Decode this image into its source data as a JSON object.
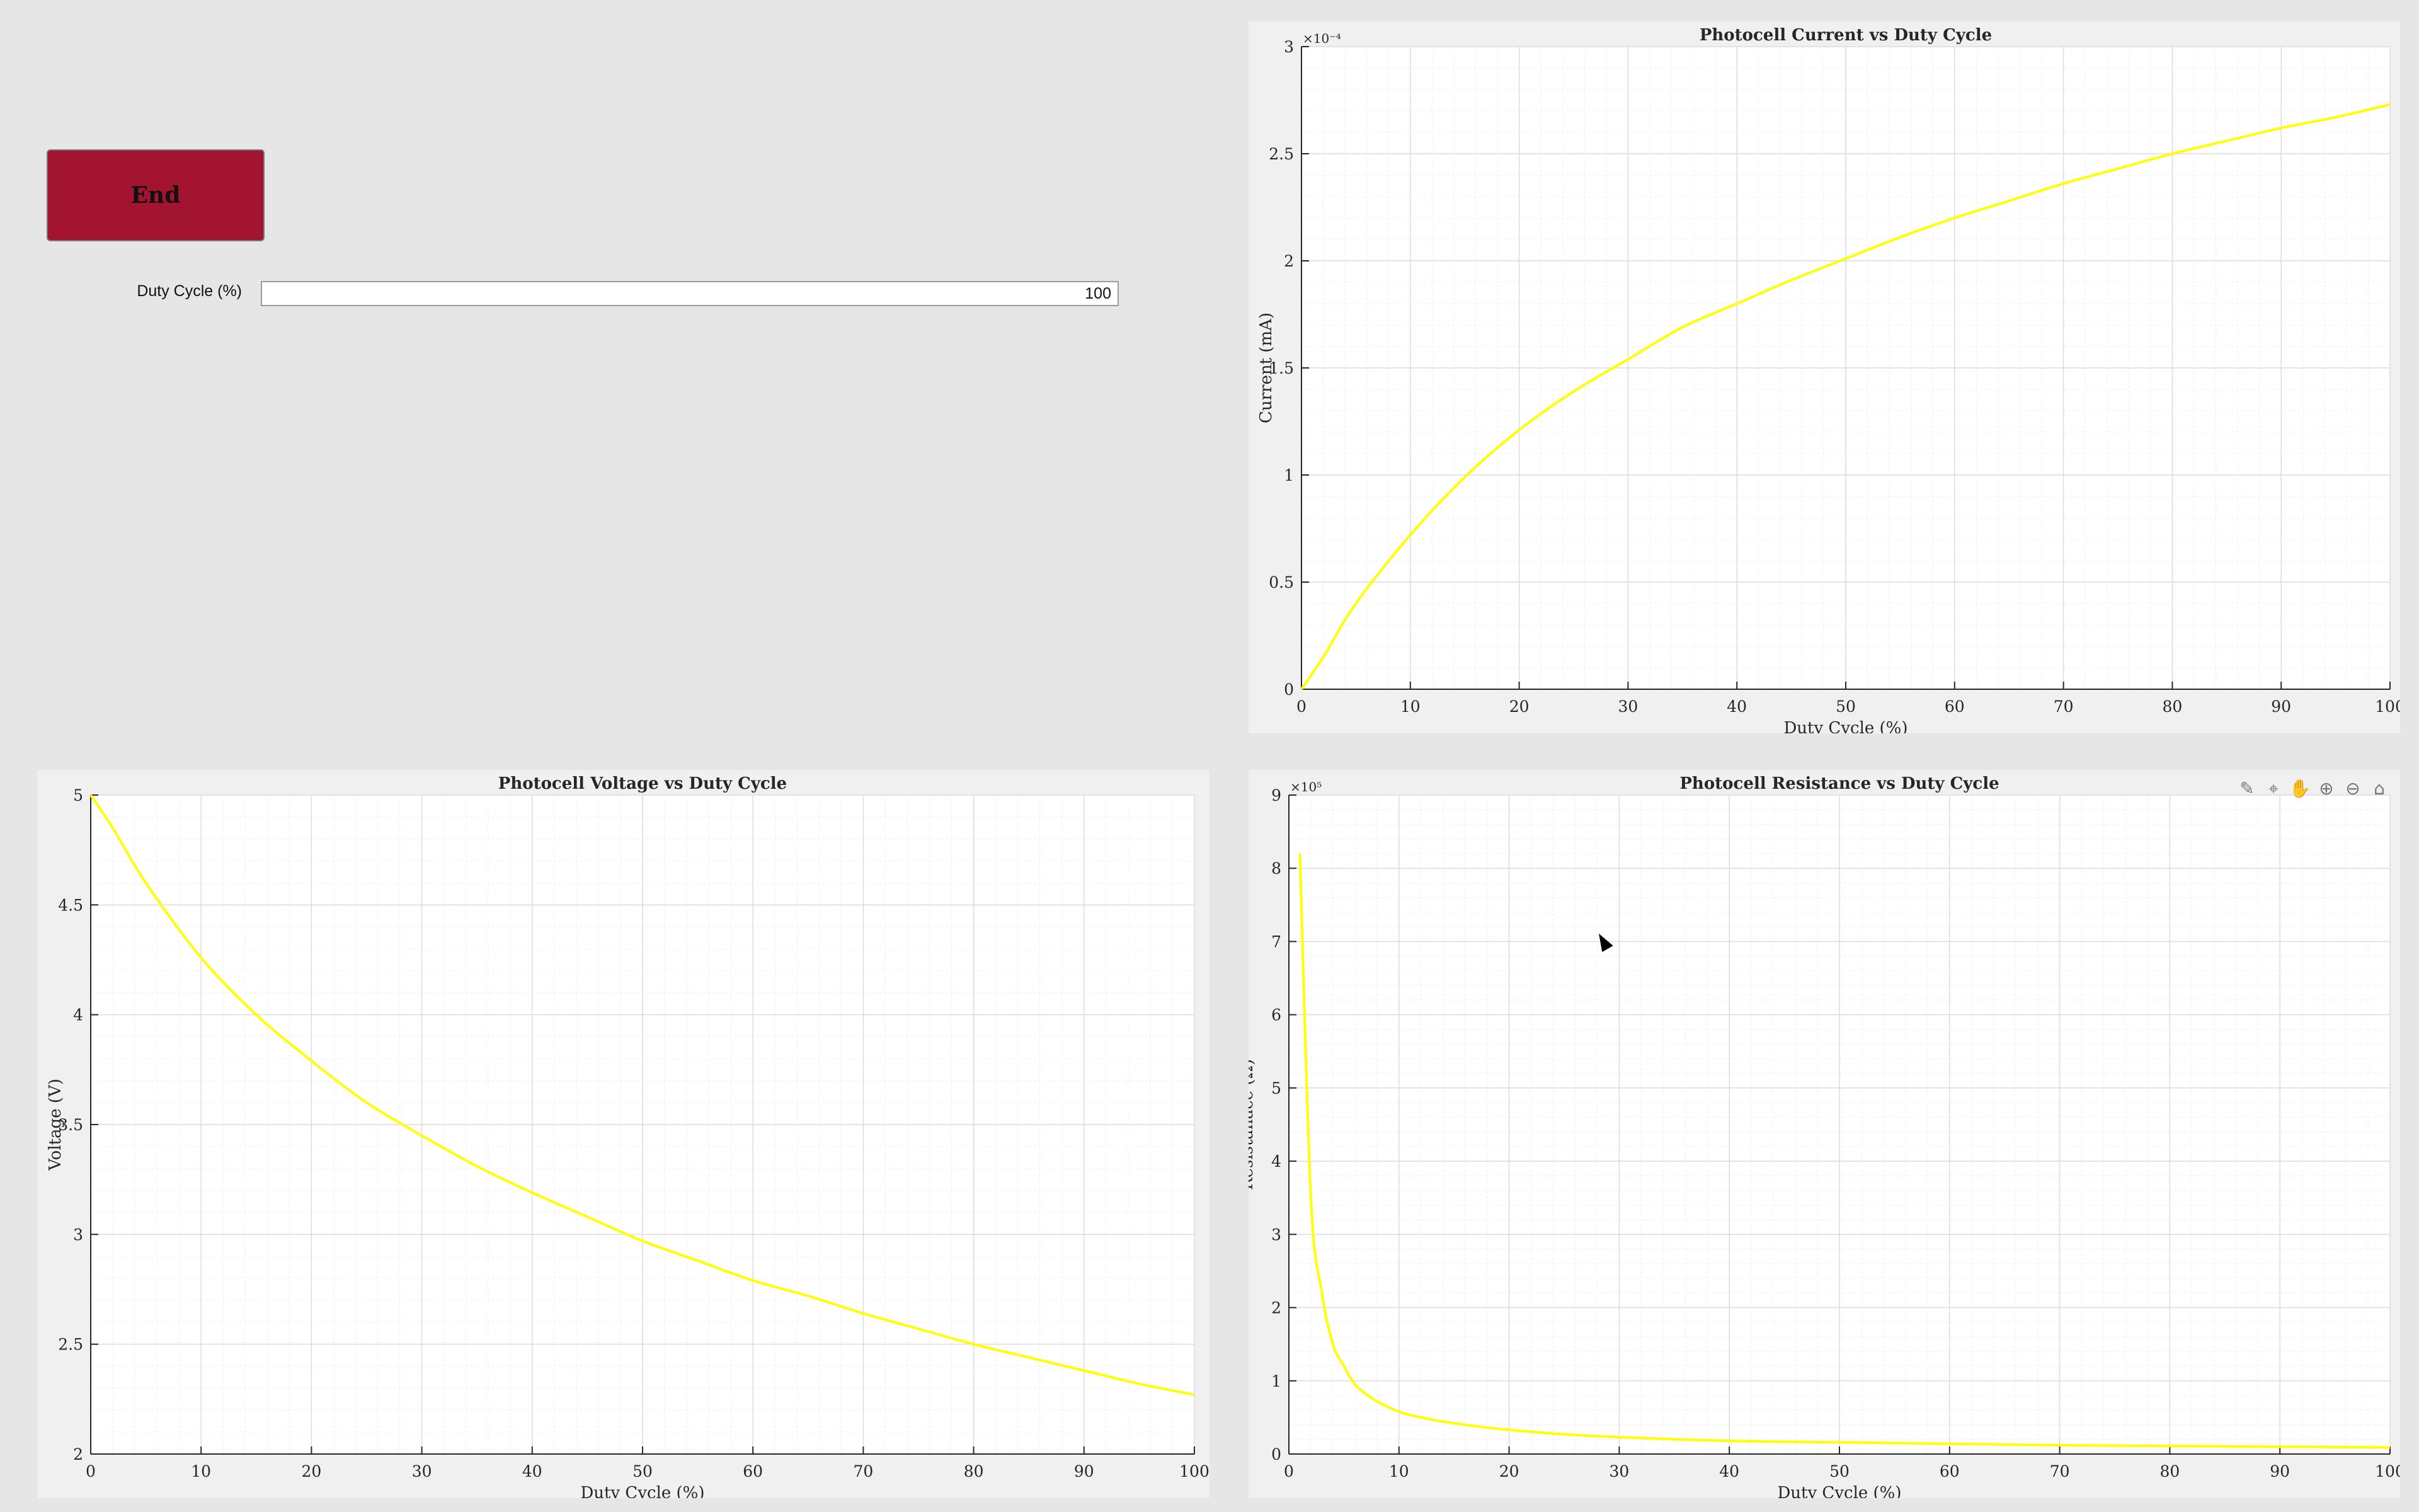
{
  "controls": {
    "end_label": "End",
    "duty_label": "Duty Cycle (%)",
    "duty_value": "100"
  },
  "toolbar": {
    "icons": [
      "brush-icon",
      "data-tips-icon",
      "pan-icon",
      "zoom-in-icon",
      "zoom-out-icon",
      "home-icon"
    ]
  },
  "colors": {
    "line": "#ffff00",
    "background": "#e6e6e6",
    "end_button": "#a2142f"
  },
  "chart_data": [
    {
      "id": "current",
      "type": "line",
      "title": "Photocell Current vs Duty Cycle",
      "xlabel": "Duty Cycle (%)",
      "ylabel": "Current (mA)",
      "exponent": "×10⁻⁴",
      "xlim": [
        0,
        100
      ],
      "ylim": [
        0,
        3
      ],
      "xticks": [
        0,
        10,
        20,
        30,
        40,
        50,
        60,
        70,
        80,
        90,
        100
      ],
      "yticks": [
        0,
        0.5,
        1,
        1.5,
        2,
        2.5,
        3
      ],
      "ytick_labels": [
        "0",
        "0.5",
        "1",
        "1.5",
        "2",
        "2.5",
        "3"
      ],
      "grid": true,
      "series": [
        {
          "x": [
            0,
            2,
            5,
            10,
            15,
            20,
            25,
            30,
            35,
            40,
            45,
            50,
            55,
            60,
            65,
            70,
            75,
            80,
            85,
            90,
            95,
            100
          ],
          "y": [
            0,
            0.15,
            0.4,
            0.72,
            0.99,
            1.21,
            1.39,
            1.54,
            1.69,
            1.8,
            1.91,
            2.01,
            2.11,
            2.2,
            2.28,
            2.36,
            2.43,
            2.5,
            2.56,
            2.62,
            2.67,
            2.73
          ]
        }
      ]
    },
    {
      "id": "voltage",
      "type": "line",
      "title": "Photocell Voltage vs Duty Cycle",
      "xlabel": "Duty Cycle (%)",
      "ylabel": "Voltage (V)",
      "exponent": "",
      "xlim": [
        0,
        100
      ],
      "ylim": [
        2,
        5
      ],
      "xticks": [
        0,
        10,
        20,
        30,
        40,
        50,
        60,
        70,
        80,
        90,
        100
      ],
      "yticks": [
        2,
        2.5,
        3,
        3.5,
        4,
        4.5,
        5
      ],
      "ytick_labels": [
        "2",
        "2.5",
        "3",
        "3.5",
        "4",
        "4.5",
        "5"
      ],
      "grid": true,
      "series": [
        {
          "x": [
            0,
            2,
            5,
            10,
            15,
            20,
            25,
            30,
            35,
            40,
            45,
            50,
            55,
            60,
            65,
            70,
            75,
            80,
            85,
            90,
            95,
            100
          ],
          "y": [
            5,
            4.85,
            4.6,
            4.26,
            4.0,
            3.79,
            3.6,
            3.45,
            3.31,
            3.19,
            3.08,
            2.97,
            2.88,
            2.79,
            2.72,
            2.64,
            2.57,
            2.5,
            2.44,
            2.38,
            2.32,
            2.27
          ]
        }
      ]
    },
    {
      "id": "resistance",
      "type": "line",
      "title": "Photocell Resistance vs Duty Cycle",
      "xlabel": "Duty Cycle (%)",
      "ylabel": "Resistanace (Ω)",
      "exponent": "×10⁵",
      "xlim": [
        0,
        100
      ],
      "ylim": [
        0,
        9
      ],
      "xticks": [
        0,
        10,
        20,
        30,
        40,
        50,
        60,
        70,
        80,
        90,
        100
      ],
      "yticks": [
        0,
        1,
        2,
        3,
        4,
        5,
        6,
        7,
        8,
        9
      ],
      "ytick_labels": [
        "0",
        "1",
        "2",
        "3",
        "4",
        "5",
        "6",
        "7",
        "8",
        "9"
      ],
      "grid": true,
      "series": [
        {
          "x": [
            1,
            2,
            3,
            4,
            5,
            6,
            7,
            8,
            10,
            12,
            15,
            20,
            25,
            30,
            40,
            50,
            60,
            70,
            80,
            90,
            100
          ],
          "y": [
            8.2,
            3.5,
            2.2,
            1.5,
            1.2,
            0.95,
            0.82,
            0.72,
            0.58,
            0.5,
            0.42,
            0.33,
            0.27,
            0.23,
            0.18,
            0.16,
            0.14,
            0.12,
            0.11,
            0.1,
            0.09
          ]
        }
      ]
    }
  ]
}
